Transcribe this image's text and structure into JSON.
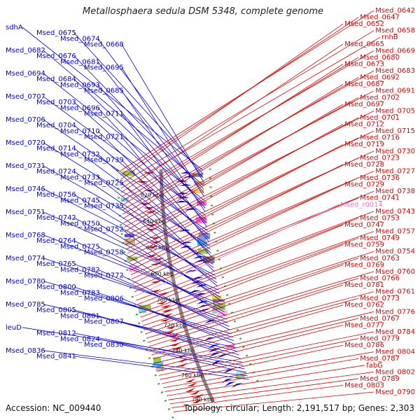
{
  "title": "Metallosphaera sedula DSM 5348, complete genome",
  "footer": {
    "accession": "Accession: NC_009440",
    "stats": "Topology: circular; Length: 2,191,517 bp; Genes: 2,303"
  },
  "colors": {
    "forward": "#0000dd",
    "reverse": "#dd0000",
    "highlight": "#ee77cc",
    "backbone": "#888888",
    "tick": "#33aa33"
  },
  "kbp_ticks": [
    "620 kbp",
    "640 kbp",
    "660 kbp",
    "680 kbp",
    "700 kbp",
    "720 kbp",
    "740 kbp",
    "760 kbp",
    "780 kbp"
  ],
  "left_labels": [
    "sdhA",
    "Msed_0675",
    "Msed_0674",
    "Msed_0668",
    "Msed_0682",
    "Msed_0676",
    "Msed_0681",
    "Msed_0695",
    "Msed_0694",
    "Msed_0684",
    "Msed_0693",
    "Msed_0685",
    "Msed_0707",
    "Msed_0703",
    "Msed_0696",
    "Msed_0711",
    "Msed_0706",
    "Msed_0704",
    "Msed_0710",
    "Msed_0721",
    "Msed_0720",
    "Msed_0714",
    "Msed_0732",
    "Msed_0739",
    "Msed_0731",
    "Msed_0724",
    "Msed_0733",
    "Msed_0725",
    "Msed_0746",
    "Msed_0756",
    "Msed_0745",
    "Msed_0735",
    "Msed_0751",
    "Msed_0742",
    "Msed_0750",
    "Msed_0752",
    "Msed_0768",
    "Msed_0764",
    "Msed_0775",
    "Msed_0758",
    "Msed_0774",
    "Msed_0765",
    "Msed_0782",
    "Msed_0772",
    "Msed_0780",
    "Msed_0800",
    "Msed_0783",
    "Msed_0806",
    "Msed_0785",
    "Msed_0805",
    "Msed_0801",
    "Msed_0807",
    "leuD",
    "Msed_0812",
    "Msed_0824",
    "Msed_0830",
    "Msed_0836",
    "Msed_0841"
  ],
  "right_labels": [
    "Msed_0642",
    "Msed_0647",
    "Msed_0652",
    "Msed_0658",
    "rnhB",
    "Msed_0665",
    "Msed_0669",
    "Msed_0680",
    "Msed_0673",
    "Msed_0683",
    "Msed_0692",
    "Msed_0687",
    "Msed_0691",
    "Msed_0702",
    "Msed_0697",
    "Msed_0705",
    "Msed_0701",
    "Msed_0712",
    "Msed_0715",
    "Msed_0716",
    "Msed_0719",
    "Msed_0730",
    "Msed_0723",
    "Msed_0728",
    "Msed_0727",
    "Msed_0736",
    "Msed_0729",
    "Msed_0738",
    "Msed_0741",
    "Msed_r0014",
    "Msed_0743",
    "Msed_0753",
    "Msed_0747",
    "Msed_0757",
    "Msed_0749",
    "Msed_0759",
    "Msed_0754",
    "Msed_0763",
    "Msed_0769",
    "Msed_0760",
    "Msed_0766",
    "Msed_0781",
    "Msed_0761",
    "Msed_0773",
    "Msed_0762",
    "Msed_0776",
    "Msed_0767",
    "Msed_0777",
    "Msed_0784",
    "Msed_0779",
    "Msed_0786",
    "Msed_0804",
    "Msed_0787",
    "fabG",
    "Msed_0802",
    "Msed_0789",
    "Msed_0803",
    "Msed_0790"
  ]
}
